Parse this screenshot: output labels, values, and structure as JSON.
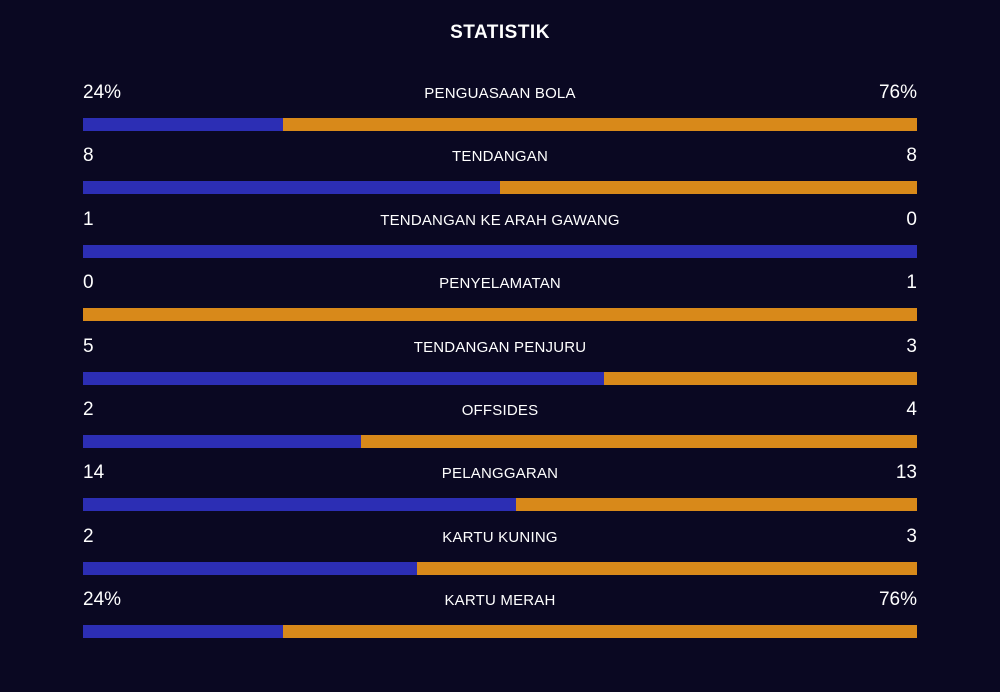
{
  "title": "STATISTIK",
  "colors": {
    "home": "#2c2eb4",
    "away": "#d8891a",
    "background": "#0a0822"
  },
  "stats": [
    {
      "label": "PENGUASAAN BOLA",
      "home": "24%",
      "away": "76%",
      "home_share": 0.24
    },
    {
      "label": "TENDANGAN",
      "home": "8",
      "away": "8",
      "home_share": 0.5
    },
    {
      "label": "TENDANGAN KE ARAH GAWANG",
      "home": "1",
      "away": "0",
      "home_share": 1.0
    },
    {
      "label": "PENYELAMATAN",
      "home": "0",
      "away": "1",
      "home_share": 0.0
    },
    {
      "label": "TENDANGAN PENJURU",
      "home": "5",
      "away": "3",
      "home_share": 0.625
    },
    {
      "label": "OFFSIDES",
      "home": "2",
      "away": "4",
      "home_share": 0.333
    },
    {
      "label": "PELANGGARAN",
      "home": "14",
      "away": "13",
      "home_share": 0.519
    },
    {
      "label": "KARTU KUNING",
      "home": "2",
      "away": "3",
      "home_share": 0.4
    },
    {
      "label": "KARTU MERAH",
      "home": "24%",
      "away": "76%",
      "home_share": 0.24
    }
  ]
}
